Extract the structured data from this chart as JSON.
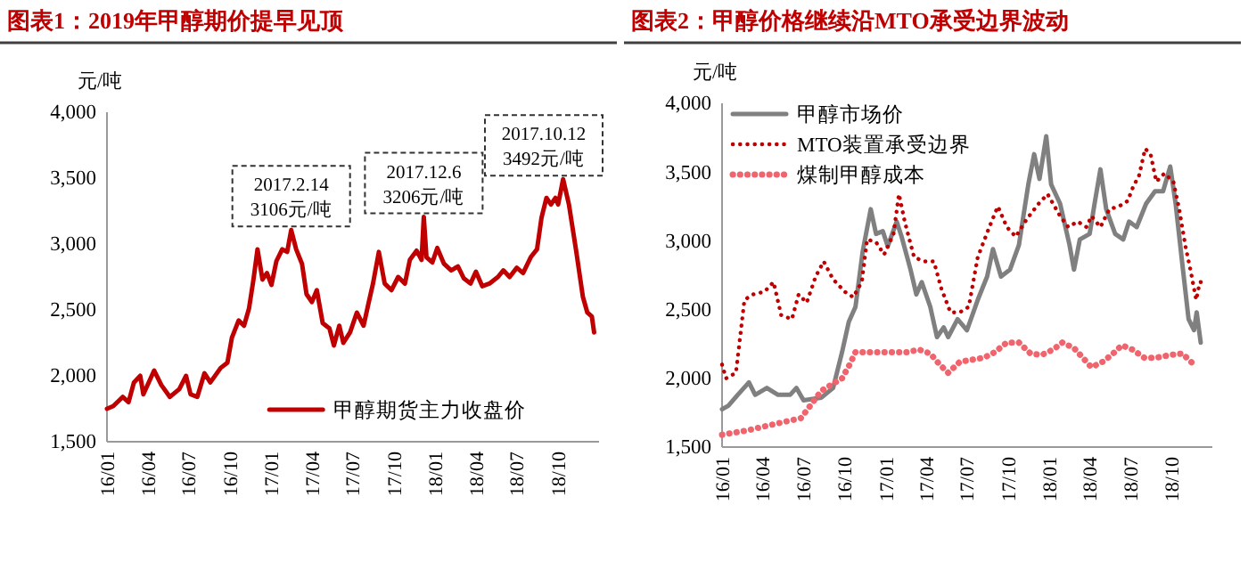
{
  "chart_data": [
    {
      "type": "line",
      "title": "图表1：2019年甲醇期价提早见顶",
      "ylabel": "元/吨",
      "legend": "bottom right",
      "marker": "none",
      "grid": false,
      "xlim": [
        "2016-01-01",
        "2018-12-31"
      ],
      "xticks": [
        {
          "value": "2016-01-01",
          "label": "16/01"
        },
        {
          "value": "2016-04-01",
          "label": "16/04"
        },
        {
          "value": "2016-07-01",
          "label": "16/07"
        },
        {
          "value": "2016-10-01",
          "label": "16/10"
        },
        {
          "value": "2017-01-01",
          "label": "17/01"
        },
        {
          "value": "2017-04-01",
          "label": "17/04"
        },
        {
          "value": "2017-07-01",
          "label": "17/07"
        },
        {
          "value": "2017-10-01",
          "label": "17/10"
        },
        {
          "value": "2018-01-01",
          "label": "18/01"
        },
        {
          "value": "2018-04-01",
          "label": "18/04"
        },
        {
          "value": "2018-07-01",
          "label": "18/07"
        },
        {
          "value": "2018-10-01",
          "label": "18/10"
        }
      ],
      "ylim": [
        1500,
        4000
      ],
      "yticks": [
        {
          "value": 1500,
          "label": "1,500"
        },
        {
          "value": 2000,
          "label": "2,000"
        },
        {
          "value": 2500,
          "label": "2,500"
        },
        {
          "value": 3000,
          "label": "3,000"
        },
        {
          "value": 3500,
          "label": "3,500"
        },
        {
          "value": 4000,
          "label": "4,000"
        }
      ],
      "annotations": [
        {
          "text": "2017.2.14\n3106元/吨",
          "x": "2017-02-14",
          "y": 3106
        },
        {
          "text": "2017.12.6\n3206元/吨",
          "x": "2017-12-06",
          "y": 3206
        },
        {
          "text": "2017.10.12\n3492元/吨",
          "x": "2018-10-12",
          "y": 3492
        }
      ],
      "series": [
        {
          "name": "甲醇期货主力收盘价",
          "color": "#c00000",
          "line_style": "solid",
          "x": [
            "2016-01-01",
            "2016-01-15",
            "2016-02-05",
            "2016-02-18",
            "2016-03-01",
            "2016-03-15",
            "2016-03-22",
            "2016-04-15",
            "2016-05-01",
            "2016-05-20",
            "2016-06-10",
            "2016-06-25",
            "2016-07-05",
            "2016-07-20",
            "2016-08-05",
            "2016-08-18",
            "2016-09-10",
            "2016-09-25",
            "2016-10-05",
            "2016-10-20",
            "2016-11-01",
            "2016-11-12",
            "2016-11-22",
            "2016-12-01",
            "2016-12-12",
            "2016-12-22",
            "2017-01-01",
            "2017-01-12",
            "2017-01-25",
            "2017-02-05",
            "2017-02-14",
            "2017-02-25",
            "2017-03-10",
            "2017-03-20",
            "2017-04-01",
            "2017-04-12",
            "2017-04-25",
            "2017-05-10",
            "2017-05-20",
            "2017-06-01",
            "2017-06-10",
            "2017-06-25",
            "2017-07-10",
            "2017-07-25",
            "2017-08-05",
            "2017-08-15",
            "2017-08-28",
            "2017-09-10",
            "2017-09-25",
            "2017-10-10",
            "2017-10-25",
            "2017-11-05",
            "2017-11-20",
            "2017-12-01",
            "2017-12-06",
            "2017-12-12",
            "2017-12-25",
            "2018-01-05",
            "2018-01-20",
            "2018-02-05",
            "2018-02-20",
            "2018-03-05",
            "2018-03-20",
            "2018-04-01",
            "2018-04-15",
            "2018-05-01",
            "2018-05-20",
            "2018-06-01",
            "2018-06-15",
            "2018-07-01",
            "2018-07-15",
            "2018-08-01",
            "2018-08-15",
            "2018-08-25",
            "2018-09-05",
            "2018-09-15",
            "2018-09-25",
            "2018-10-01",
            "2018-10-12",
            "2018-10-25",
            "2018-11-10",
            "2018-11-25",
            "2018-12-05",
            "2018-12-15",
            "2018-12-20"
          ],
          "values": [
            1750,
            1770,
            1840,
            1800,
            1950,
            2000,
            1860,
            2040,
            1930,
            1840,
            1900,
            2000,
            1860,
            1840,
            2020,
            1950,
            2060,
            2100,
            2290,
            2420,
            2380,
            2510,
            2730,
            2960,
            2730,
            2780,
            2690,
            2870,
            2960,
            2940,
            3106,
            2960,
            2850,
            2620,
            2560,
            2650,
            2400,
            2360,
            2230,
            2380,
            2250,
            2330,
            2480,
            2380,
            2550,
            2700,
            2940,
            2700,
            2650,
            2750,
            2700,
            2880,
            2950,
            2880,
            3206,
            2900,
            2860,
            2970,
            2850,
            2800,
            2830,
            2740,
            2700,
            2790,
            2680,
            2700,
            2750,
            2800,
            2750,
            2820,
            2780,
            2900,
            2960,
            3200,
            3350,
            3300,
            3350,
            3300,
            3492,
            3300,
            2950,
            2600,
            2480,
            2450,
            2330
          ]
        }
      ]
    },
    {
      "type": "line",
      "title": "图表2：甲醇价格继续沿MTO承受边界波动",
      "ylabel": "元/吨",
      "legend": "top left",
      "marker": "none",
      "grid": false,
      "xlim": [
        "2016-01-01",
        "2018-12-31"
      ],
      "xticks": [
        {
          "value": "2016-01-01",
          "label": "16/01"
        },
        {
          "value": "2016-04-01",
          "label": "16/04"
        },
        {
          "value": "2016-07-01",
          "label": "16/07"
        },
        {
          "value": "2016-10-01",
          "label": "16/10"
        },
        {
          "value": "2017-01-01",
          "label": "17/01"
        },
        {
          "value": "2017-04-01",
          "label": "17/04"
        },
        {
          "value": "2017-07-01",
          "label": "17/07"
        },
        {
          "value": "2017-10-01",
          "label": "17/10"
        },
        {
          "value": "2018-01-01",
          "label": "18/01"
        },
        {
          "value": "2018-04-01",
          "label": "18/04"
        },
        {
          "value": "2018-07-01",
          "label": "18/07"
        },
        {
          "value": "2018-10-01",
          "label": "18/10"
        }
      ],
      "ylim": [
        1500,
        4000
      ],
      "yticks": [
        {
          "value": 1500,
          "label": "1,500"
        },
        {
          "value": 2000,
          "label": "2,000"
        },
        {
          "value": 2500,
          "label": "2,500"
        },
        {
          "value": 3000,
          "label": "3,000"
        },
        {
          "value": 3500,
          "label": "3,500"
        },
        {
          "value": 4000,
          "label": "4,000"
        }
      ],
      "series": [
        {
          "name": "甲醇市场价",
          "color": "#808080",
          "line_style": "solid",
          "x": [
            "2016-01-01",
            "2016-01-15",
            "2016-02-05",
            "2016-03-01",
            "2016-03-15",
            "2016-04-10",
            "2016-05-05",
            "2016-06-01",
            "2016-06-15",
            "2016-07-01",
            "2016-08-10",
            "2016-09-05",
            "2016-09-25",
            "2016-10-10",
            "2016-10-25",
            "2016-11-10",
            "2016-11-28",
            "2016-12-10",
            "2016-12-25",
            "2017-01-05",
            "2017-01-25",
            "2017-02-05",
            "2017-02-25",
            "2017-03-10",
            "2017-03-22",
            "2017-04-10",
            "2017-04-25",
            "2017-05-10",
            "2017-05-20",
            "2017-06-10",
            "2017-07-01",
            "2017-07-25",
            "2017-08-15",
            "2017-08-28",
            "2017-09-15",
            "2017-10-05",
            "2017-10-25",
            "2017-11-15",
            "2017-11-28",
            "2017-12-10",
            "2017-12-25",
            "2018-01-05",
            "2018-01-25",
            "2018-02-15",
            "2018-02-25",
            "2018-03-10",
            "2018-04-01",
            "2018-04-12",
            "2018-04-25",
            "2018-05-08",
            "2018-05-28",
            "2018-06-15",
            "2018-06-28",
            "2018-07-15",
            "2018-08-05",
            "2018-08-25",
            "2018-09-12",
            "2018-09-28",
            "2018-10-10",
            "2018-10-25",
            "2018-11-08",
            "2018-11-20",
            "2018-11-26",
            "2018-12-05"
          ],
          "values": [
            1775,
            1800,
            1880,
            1970,
            1880,
            1930,
            1880,
            1880,
            1930,
            1840,
            1860,
            1930,
            2190,
            2410,
            2520,
            2920,
            3230,
            3050,
            3070,
            2960,
            3140,
            3030,
            2790,
            2610,
            2700,
            2520,
            2300,
            2370,
            2300,
            2430,
            2350,
            2570,
            2740,
            2940,
            2740,
            2790,
            2970,
            3410,
            3630,
            3450,
            3760,
            3410,
            3270,
            2970,
            2790,
            3010,
            3050,
            3270,
            3520,
            3230,
            3050,
            3010,
            3140,
            3100,
            3270,
            3360,
            3360,
            3540,
            3270,
            2830,
            2430,
            2350,
            2480,
            2260
          ]
        },
        {
          "name": "MTO装置承受边界",
          "color": "#c00000",
          "line_style": "dotted",
          "x": [
            "2016-01-01",
            "2016-01-10",
            "2016-02-01",
            "2016-02-20",
            "2016-03-10",
            "2016-04-05",
            "2016-04-25",
            "2016-05-12",
            "2016-06-05",
            "2016-06-20",
            "2016-07-08",
            "2016-07-28",
            "2016-08-15",
            "2016-09-05",
            "2016-10-01",
            "2016-10-20",
            "2016-11-08",
            "2016-11-20",
            "2016-12-10",
            "2016-12-28",
            "2017-01-18",
            "2017-01-30",
            "2017-02-12",
            "2017-03-05",
            "2017-03-28",
            "2017-04-18",
            "2017-05-05",
            "2017-05-25",
            "2017-06-15",
            "2017-07-05",
            "2017-07-25",
            "2017-08-20",
            "2017-09-08",
            "2017-09-28",
            "2017-10-18",
            "2017-11-12",
            "2017-12-08",
            "2017-12-28",
            "2018-01-25",
            "2018-02-12",
            "2018-03-05",
            "2018-03-25",
            "2018-04-05",
            "2018-04-25",
            "2018-05-15",
            "2018-06-05",
            "2018-06-25",
            "2018-07-08",
            "2018-07-20",
            "2018-08-03",
            "2018-08-15",
            "2018-08-28",
            "2018-09-15",
            "2018-10-05",
            "2018-10-18",
            "2018-11-01",
            "2018-11-12",
            "2018-11-25",
            "2018-12-03",
            "2018-12-10"
          ],
          "values": [
            2100,
            2000,
            2040,
            2570,
            2610,
            2630,
            2700,
            2460,
            2430,
            2610,
            2550,
            2740,
            2850,
            2720,
            2630,
            2590,
            2700,
            3010,
            2990,
            2900,
            3050,
            3340,
            3140,
            2880,
            2850,
            2850,
            2650,
            2480,
            2480,
            2520,
            2880,
            3100,
            3250,
            3100,
            3030,
            3160,
            3270,
            3340,
            3180,
            3100,
            3140,
            3100,
            3180,
            3100,
            3230,
            3250,
            3290,
            3400,
            3470,
            3670,
            3630,
            3430,
            3490,
            3430,
            3230,
            2960,
            2790,
            2570,
            2700,
            2700
          ]
        },
        {
          "name": "煤制甲醇成本",
          "color": "#f0646e",
          "line_style": "dotted",
          "x": [
            "2016-01-01",
            "2016-02-25",
            "2016-05-01",
            "2016-06-25",
            "2016-08-10",
            "2016-09-25",
            "2016-10-12",
            "2016-10-25",
            "2016-12-05",
            "2017-01-15",
            "2017-02-20",
            "2017-03-15",
            "2017-04-10",
            "2017-05-01",
            "2017-05-20",
            "2017-06-15",
            "2017-08-08",
            "2017-09-01",
            "2017-09-28",
            "2017-10-25",
            "2017-11-20",
            "2017-12-15",
            "2018-01-10",
            "2018-01-30",
            "2018-02-25",
            "2018-04-05",
            "2018-04-30",
            "2018-05-20",
            "2018-06-12",
            "2018-07-05",
            "2018-08-01",
            "2018-08-28",
            "2018-09-28",
            "2018-10-25",
            "2018-11-20"
          ],
          "values": [
            1590,
            1620,
            1670,
            1710,
            1910,
            2000,
            2100,
            2190,
            2190,
            2190,
            2190,
            2210,
            2180,
            2100,
            2040,
            2120,
            2150,
            2190,
            2260,
            2260,
            2180,
            2170,
            2210,
            2260,
            2220,
            2080,
            2120,
            2170,
            2240,
            2210,
            2150,
            2150,
            2170,
            2180,
            2100
          ]
        }
      ]
    }
  ]
}
